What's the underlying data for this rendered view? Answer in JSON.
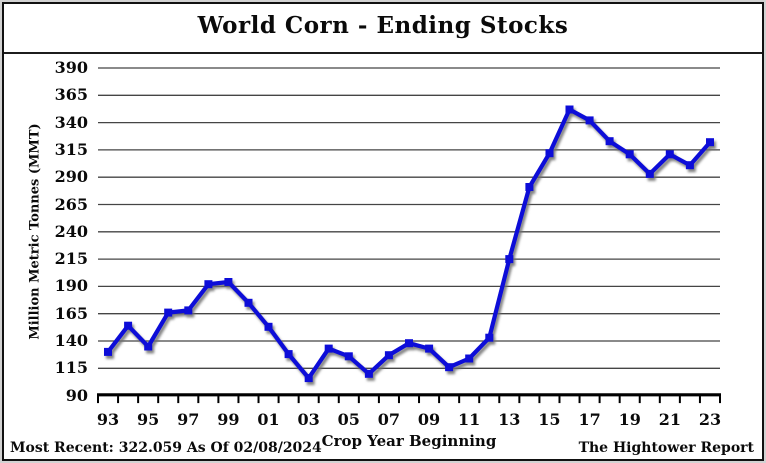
{
  "header": {
    "title": "World Corn - Ending Stocks"
  },
  "chart_data": {
    "type": "line",
    "title": "World Corn - Ending Stocks",
    "xlabel": "Crop Year Beginning",
    "ylabel": "Million Metric Tonnes (MMT)",
    "ylim": [
      90,
      390
    ],
    "yticks": [
      390,
      365,
      340,
      315,
      290,
      265,
      240,
      215,
      190,
      165,
      140,
      115,
      90
    ],
    "x_categories": [
      "93",
      "94",
      "95",
      "96",
      "97",
      "98",
      "99",
      "00",
      "01",
      "02",
      "03",
      "04",
      "05",
      "06",
      "07",
      "08",
      "09",
      "10",
      "11",
      "12",
      "13",
      "14",
      "15",
      "16",
      "17",
      "18",
      "19",
      "20",
      "21",
      "22",
      "23"
    ],
    "xtick_labels": [
      "93",
      "95",
      "97",
      "99",
      "01",
      "03",
      "05",
      "07",
      "09",
      "11",
      "13",
      "15",
      "17",
      "19",
      "21",
      "23"
    ],
    "series": [
      {
        "name": "World Corn Ending Stocks (MMT)",
        "values": [
          130,
          154,
          135,
          166,
          168,
          192,
          194,
          175,
          153,
          128,
          106,
          133,
          126,
          110,
          127,
          138,
          133,
          116,
          124,
          143,
          215,
          281,
          312,
          352,
          342,
          323,
          311,
          293,
          311,
          301,
          322.059
        ]
      }
    ],
    "grid": true,
    "legend_position": "none",
    "line_color": "#0d0dd8",
    "grid_color": "#454545",
    "marker": "square"
  },
  "footer": {
    "most_recent": "Most Recent: 322.059 As Of 02/08/2024",
    "source": "The Hightower Report"
  }
}
